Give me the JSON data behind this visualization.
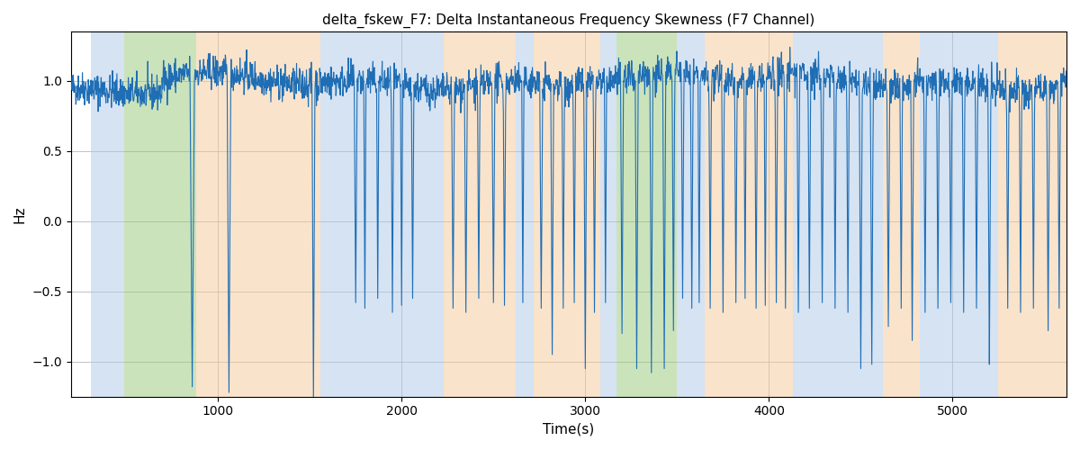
{
  "title": "delta_fskew_F7: Delta Instantaneous Frequency Skewness (F7 Channel)",
  "xlabel": "Time(s)",
  "ylabel": "Hz",
  "xlim": [
    200,
    5620
  ],
  "ylim": [
    -1.25,
    1.35
  ],
  "line_color": "#1f6eb5",
  "line_width": 0.8,
  "background_color": "#ffffff",
  "grid_color": "#aaaaaa",
  "seed": 42,
  "x_start": 200,
  "x_end": 5620,
  "dt": 2.0,
  "bands": [
    {
      "start": 310,
      "end": 490,
      "color": "#adc8e8",
      "alpha": 0.5
    },
    {
      "start": 490,
      "end": 880,
      "color": "#98c878",
      "alpha": 0.5
    },
    {
      "start": 880,
      "end": 1560,
      "color": "#f5c898",
      "alpha": 0.5
    },
    {
      "start": 1560,
      "end": 2230,
      "color": "#adc8e8",
      "alpha": 0.5
    },
    {
      "start": 2230,
      "end": 2620,
      "color": "#f5c898",
      "alpha": 0.5
    },
    {
      "start": 2620,
      "end": 2720,
      "color": "#adc8e8",
      "alpha": 0.5
    },
    {
      "start": 2720,
      "end": 3080,
      "color": "#f5c898",
      "alpha": 0.5
    },
    {
      "start": 3080,
      "end": 3170,
      "color": "#adc8e8",
      "alpha": 0.5
    },
    {
      "start": 3170,
      "end": 3500,
      "color": "#98c878",
      "alpha": 0.5
    },
    {
      "start": 3500,
      "end": 3650,
      "color": "#adc8e8",
      "alpha": 0.5
    },
    {
      "start": 3650,
      "end": 4130,
      "color": "#f5c898",
      "alpha": 0.5
    },
    {
      "start": 4130,
      "end": 4620,
      "color": "#adc8e8",
      "alpha": 0.5
    },
    {
      "start": 4620,
      "end": 4820,
      "color": "#f5c898",
      "alpha": 0.5
    },
    {
      "start": 4820,
      "end": 5250,
      "color": "#adc8e8",
      "alpha": 0.5
    },
    {
      "start": 5250,
      "end": 5620,
      "color": "#f5c898",
      "alpha": 0.5
    }
  ],
  "yticks": [
    -1.0,
    -0.5,
    0.0,
    0.5,
    1.0
  ],
  "xticks": [
    1000,
    2000,
    3000,
    4000,
    5000
  ]
}
